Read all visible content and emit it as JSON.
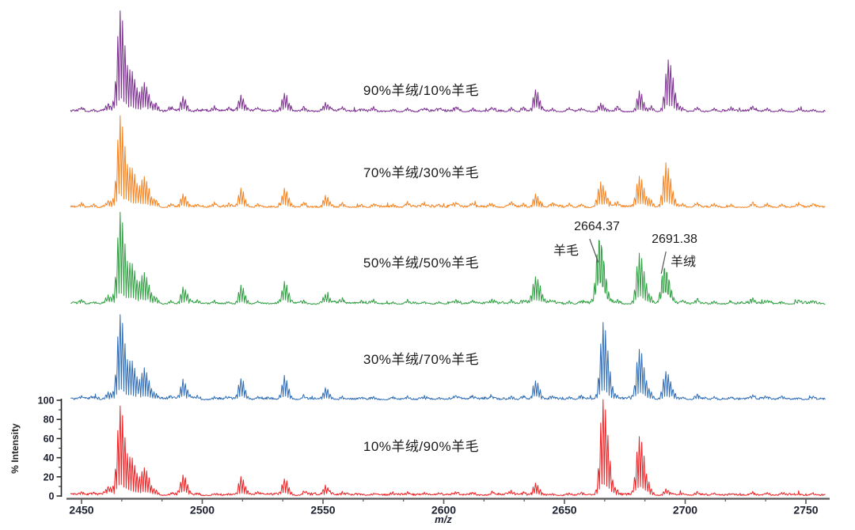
{
  "figure": {
    "x_axis_label": "m/z",
    "y_axis_label": "% Intensity"
  },
  "chart_data": {
    "type": "line",
    "subtype": "stacked-mass-spectra",
    "title": "",
    "xlabel": "m/z",
    "ylabel": "% Intensity",
    "x_range": [
      2445,
      2758
    ],
    "x_ticks": [
      2450,
      2500,
      2550,
      2600,
      2650,
      2700,
      2750
    ],
    "y_ticks": [
      0,
      20,
      40,
      60,
      80,
      100
    ],
    "y_range_per_trace": [
      0,
      100
    ],
    "legend_position": "inline-labels",
    "grid": false,
    "series": [
      {
        "name": "90%羊绒/10%羊毛",
        "color": "#7b2f8f",
        "peaks": [
          [
            2461,
            7
          ],
          [
            2466,
            105
          ],
          [
            2471,
            36
          ],
          [
            2476,
            28
          ],
          [
            2492,
            14
          ],
          [
            2516,
            16
          ],
          [
            2534,
            19
          ],
          [
            2551,
            9
          ],
          [
            2638,
            22
          ],
          [
            2665,
            9
          ],
          [
            2681,
            22
          ],
          [
            2693,
            54
          ]
        ]
      },
      {
        "name": "70%羊绒/30%羊毛",
        "color": "#f5821f",
        "peaks": [
          [
            2461,
            7
          ],
          [
            2466,
            93
          ],
          [
            2471,
            34
          ],
          [
            2476,
            29
          ],
          [
            2492,
            14
          ],
          [
            2516,
            18
          ],
          [
            2534,
            20
          ],
          [
            2551,
            12
          ],
          [
            2638,
            14
          ],
          [
            2665,
            26
          ],
          [
            2681,
            31
          ],
          [
            2692,
            45
          ]
        ]
      },
      {
        "name": "50%羊绒/50%羊毛",
        "color": "#2f9e41",
        "peaks": [
          [
            2461,
            8
          ],
          [
            2466,
            95
          ],
          [
            2471,
            36
          ],
          [
            2476,
            30
          ],
          [
            2492,
            17
          ],
          [
            2516,
            20
          ],
          [
            2534,
            22
          ],
          [
            2551,
            10
          ],
          [
            2638,
            28
          ],
          [
            2664.37,
            74
          ],
          [
            2681,
            52
          ],
          [
            2691.38,
            41
          ]
        ]
      },
      {
        "name": "30%羊绒/70%羊毛",
        "color": "#2e6cb5",
        "peaks": [
          [
            2461,
            8
          ],
          [
            2466,
            89
          ],
          [
            2471,
            35
          ],
          [
            2476,
            31
          ],
          [
            2492,
            19
          ],
          [
            2516,
            21
          ],
          [
            2534,
            24
          ],
          [
            2551,
            12
          ],
          [
            2638,
            19
          ],
          [
            2666,
            80
          ],
          [
            2681,
            52
          ],
          [
            2692,
            29
          ]
        ]
      },
      {
        "name": "10%羊绒/90%羊毛",
        "color": "#ee2124",
        "peaks": [
          [
            2461,
            9
          ],
          [
            2466,
            92
          ],
          [
            2471,
            33
          ],
          [
            2476,
            27
          ],
          [
            2492,
            21
          ],
          [
            2516,
            19
          ],
          [
            2534,
            17
          ],
          [
            2551,
            10
          ],
          [
            2638,
            12
          ],
          [
            2666,
            99
          ],
          [
            2681,
            61
          ],
          [
            2692,
            6
          ]
        ]
      }
    ],
    "minor_bumps": [
      [
        2450,
        4
      ],
      [
        2455,
        3
      ],
      [
        2481,
        6
      ],
      [
        2487,
        4
      ],
      [
        2498,
        3
      ],
      [
        2505,
        4
      ],
      [
        2511,
        3
      ],
      [
        2523,
        4
      ],
      [
        2542,
        5
      ],
      [
        2558,
        5
      ],
      [
        2566,
        3
      ],
      [
        2571,
        4
      ],
      [
        2579,
        3
      ],
      [
        2585,
        4
      ],
      [
        2592,
        3
      ],
      [
        2598,
        3
      ],
      [
        2605,
        4
      ],
      [
        2612,
        4
      ],
      [
        2620,
        4
      ],
      [
        2628,
        5
      ],
      [
        2633,
        5
      ],
      [
        2645,
        4
      ],
      [
        2652,
        4
      ],
      [
        2657,
        4
      ],
      [
        2672,
        5
      ],
      [
        2686,
        6
      ],
      [
        2699,
        4
      ],
      [
        2705,
        5
      ],
      [
        2712,
        4
      ],
      [
        2719,
        3
      ],
      [
        2728,
        6
      ],
      [
        2734,
        4
      ],
      [
        2740,
        3
      ],
      [
        2747,
        3
      ],
      [
        2753,
        3
      ]
    ],
    "annotations": [
      {
        "value": "2664.37",
        "label": "羊毛",
        "mz": 2664.37,
        "series_index": 2
      },
      {
        "value": "2691.38",
        "label": "羊绒",
        "mz": 2691.38,
        "series_index": 2
      }
    ]
  }
}
